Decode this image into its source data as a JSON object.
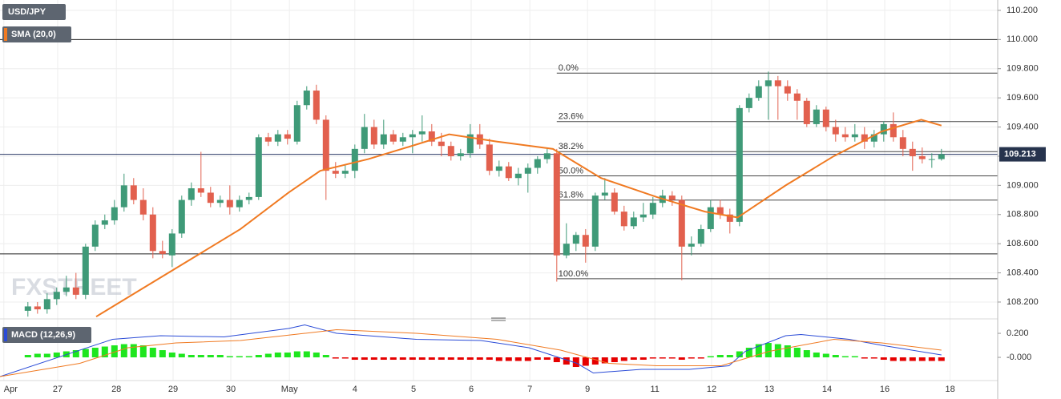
{
  "chart_data": [
    {
      "type": "candlestick",
      "title": "USD/JPY",
      "watermark": "FXSTREET",
      "ylim": [
        108.101,
        110.271
      ],
      "yticks": [
        {
          "value": 110.2,
          "label": "110.200"
        },
        {
          "value": 110.0,
          "label": "110.000"
        },
        {
          "value": 109.8,
          "label": "109.800"
        },
        {
          "value": 109.6,
          "label": "109.600"
        },
        {
          "value": 109.4,
          "label": "109.400"
        },
        {
          "value": 109.2,
          "label": "109.200"
        },
        {
          "value": 109.0,
          "label": "109.000"
        },
        {
          "value": 108.8,
          "label": "108.800"
        },
        {
          "value": 108.6,
          "label": "108.600"
        },
        {
          "value": 108.4,
          "label": "108.400"
        },
        {
          "value": 108.2,
          "label": "108.200"
        }
      ],
      "grid": true,
      "up_color": "#3f9a78",
      "down_color": "#e2604e",
      "ohlc": [
        [
          108.14,
          108.2,
          108.1,
          108.17
        ],
        [
          108.17,
          108.2,
          108.12,
          108.15
        ],
        [
          108.15,
          108.26,
          108.12,
          108.22
        ],
        [
          108.22,
          108.3,
          108.18,
          108.27
        ],
        [
          108.27,
          108.38,
          108.24,
          108.3
        ],
        [
          108.3,
          108.4,
          108.22,
          108.25
        ],
        [
          108.25,
          108.6,
          108.22,
          108.58
        ],
        [
          108.58,
          108.76,
          108.55,
          108.73
        ],
        [
          108.73,
          108.8,
          108.7,
          108.76
        ],
        [
          108.76,
          108.9,
          108.73,
          108.85
        ],
        [
          108.85,
          109.08,
          108.82,
          109.0
        ],
        [
          109.0,
          109.05,
          108.87,
          108.9
        ],
        [
          108.9,
          108.98,
          108.76,
          108.8
        ],
        [
          108.8,
          108.85,
          108.5,
          108.55
        ],
        [
          108.55,
          108.62,
          108.5,
          108.53
        ],
        [
          108.52,
          108.7,
          108.44,
          108.67
        ],
        [
          108.67,
          108.93,
          108.64,
          108.9
        ],
        [
          108.9,
          109.02,
          108.86,
          108.98
        ],
        [
          108.98,
          109.23,
          108.92,
          108.95
        ],
        [
          108.95,
          108.99,
          108.85,
          108.88
        ],
        [
          108.88,
          108.93,
          108.85,
          108.9
        ],
        [
          108.9,
          109.0,
          108.8,
          108.85
        ],
        [
          108.85,
          108.93,
          108.82,
          108.9
        ],
        [
          108.9,
          108.95,
          108.87,
          108.92
        ],
        [
          108.92,
          109.35,
          108.9,
          109.33
        ],
        [
          109.33,
          109.36,
          109.27,
          109.3
        ],
        [
          109.3,
          109.38,
          109.27,
          109.35
        ],
        [
          109.35,
          109.38,
          109.28,
          109.32
        ],
        [
          109.3,
          109.58,
          109.28,
          109.55
        ],
        [
          109.55,
          109.68,
          109.52,
          109.65
        ],
        [
          109.65,
          109.69,
          109.42,
          109.45
        ],
        [
          109.45,
          109.48,
          108.9,
          109.1
        ],
        [
          109.1,
          109.16,
          109.05,
          109.08
        ],
        [
          109.08,
          109.14,
          109.05,
          109.1
        ],
        [
          109.1,
          109.28,
          109.05,
          109.25
        ],
        [
          109.25,
          109.49,
          109.22,
          109.4
        ],
        [
          109.4,
          109.45,
          109.25,
          109.28
        ],
        [
          109.28,
          109.45,
          109.25,
          109.35
        ],
        [
          109.35,
          109.38,
          109.28,
          109.3
        ],
        [
          109.3,
          109.36,
          109.27,
          109.33
        ],
        [
          109.33,
          109.38,
          109.22,
          109.35
        ],
        [
          109.35,
          109.48,
          109.3,
          109.37
        ],
        [
          109.37,
          109.42,
          109.27,
          109.3
        ],
        [
          109.3,
          109.36,
          109.2,
          109.27
        ],
        [
          109.27,
          109.3,
          109.17,
          109.2
        ],
        [
          109.2,
          109.25,
          109.17,
          109.22
        ],
        [
          109.22,
          109.42,
          109.19,
          109.35
        ],
        [
          109.35,
          109.42,
          109.25,
          109.28
        ],
        [
          109.28,
          109.32,
          109.07,
          109.1
        ],
        [
          109.1,
          109.17,
          109.06,
          109.13
        ],
        [
          109.13,
          109.16,
          109.03,
          109.05
        ],
        [
          109.05,
          109.12,
          109.0,
          109.08
        ],
        [
          109.08,
          109.15,
          108.95,
          109.12
        ],
        [
          109.12,
          109.2,
          109.08,
          109.18
        ],
        [
          109.18,
          109.25,
          109.15,
          109.22
        ],
        [
          109.22,
          109.25,
          108.34,
          108.52
        ],
        [
          108.52,
          108.74,
          108.5,
          108.6
        ],
        [
          108.6,
          108.68,
          108.55,
          108.66
        ],
        [
          108.66,
          108.7,
          108.47,
          108.58
        ],
        [
          108.58,
          108.95,
          108.55,
          108.93
        ],
        [
          108.93,
          109.05,
          108.9,
          108.95
        ],
        [
          108.95,
          108.98,
          108.8,
          108.82
        ],
        [
          108.82,
          108.86,
          108.69,
          108.72
        ],
        [
          108.72,
          108.82,
          108.7,
          108.78
        ],
        [
          108.78,
          108.88,
          108.75,
          108.8
        ],
        [
          108.8,
          108.92,
          108.77,
          108.88
        ],
        [
          108.88,
          108.97,
          108.85,
          108.93
        ],
        [
          108.93,
          108.96,
          108.86,
          108.9
        ],
        [
          108.9,
          108.93,
          108.35,
          108.58
        ],
        [
          108.58,
          108.65,
          108.52,
          108.6
        ],
        [
          108.6,
          108.73,
          108.58,
          108.7
        ],
        [
          108.7,
          108.9,
          108.68,
          108.85
        ],
        [
          108.85,
          108.9,
          108.77,
          108.8
        ],
        [
          108.8,
          108.84,
          108.67,
          108.75
        ],
        [
          108.75,
          109.55,
          108.72,
          109.53
        ],
        [
          109.53,
          109.63,
          109.5,
          109.6
        ],
        [
          109.6,
          109.72,
          109.58,
          109.68
        ],
        [
          109.68,
          109.78,
          109.45,
          109.72
        ],
        [
          109.72,
          109.75,
          109.45,
          109.68
        ],
        [
          109.68,
          109.72,
          109.58,
          109.63
        ],
        [
          109.63,
          109.66,
          109.45,
          109.58
        ],
        [
          109.58,
          109.6,
          109.4,
          109.42
        ],
        [
          109.42,
          109.55,
          109.4,
          109.52
        ],
        [
          109.52,
          109.54,
          109.37,
          109.4
        ],
        [
          109.4,
          109.45,
          109.3,
          109.35
        ],
        [
          109.35,
          109.4,
          109.3,
          109.33
        ],
        [
          109.33,
          109.42,
          109.3,
          109.35
        ],
        [
          109.35,
          109.4,
          109.25,
          109.3
        ],
        [
          109.3,
          109.38,
          109.26,
          109.35
        ],
        [
          109.35,
          109.44,
          109.3,
          109.42
        ],
        [
          109.42,
          109.5,
          109.3,
          109.33
        ],
        [
          109.33,
          109.38,
          109.2,
          109.25
        ],
        [
          109.25,
          109.3,
          109.1,
          109.2
        ],
        [
          109.2,
          109.26,
          109.15,
          109.18
        ],
        [
          109.18,
          109.22,
          109.12,
          109.18
        ],
        [
          109.18,
          109.25,
          109.17,
          109.213
        ]
      ],
      "sma": {
        "name": "SMA (20,0)",
        "color": "#f07a22",
        "x": [
          7.1,
          12.1,
          17.1,
          22.1,
          27.1,
          30.4,
          35.4,
          40.4,
          43.8,
          48.8,
          54.6,
          59.6,
          65.4,
          70.4,
          73.8,
          78.8,
          83.8,
          88.8,
          92.9,
          95
        ],
        "values": [
          108.1,
          108.3,
          108.5,
          108.7,
          108.95,
          109.1,
          109.18,
          109.28,
          109.35,
          109.3,
          109.25,
          109.05,
          108.92,
          108.82,
          108.78,
          109.0,
          109.2,
          109.37,
          109.45,
          109.41
        ]
      },
      "hlines": [
        110.0,
        108.53
      ],
      "last_price": 109.213,
      "fibonacci": {
        "high": 109.77,
        "low": 108.36,
        "start": 55,
        "levels": [
          0,
          23.6,
          38.2,
          50,
          61.8,
          100
        ],
        "level_labels": [
          "0.0%",
          "23.6%",
          "38.2%",
          "50.0%",
          "61.8%",
          "100.0%"
        ]
      }
    },
    {
      "type": "macd",
      "title": "MACD (12,26,9)",
      "xlim": [
        -2.9,
        100.85
      ],
      "xticks": [
        {
          "value": -2.5,
          "label": "Apr"
        },
        {
          "value": 3.1,
          "label": "27"
        },
        {
          "value": 9.2,
          "label": "28"
        },
        {
          "value": 15.1,
          "label": "29"
        },
        {
          "value": 21.1,
          "label": "30"
        },
        {
          "value": 27.2,
          "label": "May"
        },
        {
          "value": 34.0,
          "label": "4"
        },
        {
          "value": 40.1,
          "label": "5"
        },
        {
          "value": 46.1,
          "label": "6"
        },
        {
          "value": 52.2,
          "label": "7"
        },
        {
          "value": 58.2,
          "label": "9"
        },
        {
          "value": 65.2,
          "label": "11"
        },
        {
          "value": 71.1,
          "label": "12"
        },
        {
          "value": 77.1,
          "label": "13"
        },
        {
          "value": 83.1,
          "label": "14"
        },
        {
          "value": 89.1,
          "label": "16"
        },
        {
          "value": 95.9,
          "label": "18"
        }
      ],
      "ylim": [
        -0.16,
        0.287
      ],
      "yticks": [
        {
          "value": 0.2,
          "label": "0.200"
        },
        {
          "value": 0,
          "label": "-0.000"
        }
      ],
      "histogram": {
        "up_color": "#1ee61e",
        "down_color": "#e60000",
        "values": [
          0.02,
          0.03,
          0.03,
          0.04,
          0.05,
          0.06,
          0.07,
          0.08,
          0.09,
          0.1,
          0.11,
          0.11,
          0.1,
          0.08,
          0.06,
          0.04,
          0.03,
          0.02,
          0.02,
          0.02,
          0.02,
          0.01,
          0.01,
          0.01,
          0.02,
          0.03,
          0.04,
          0.04,
          0.05,
          0.05,
          0.04,
          0.02,
          -0.01,
          -0.01,
          -0.02,
          -0.02,
          -0.02,
          -0.02,
          -0.02,
          -0.02,
          -0.02,
          -0.02,
          -0.02,
          -0.02,
          -0.02,
          -0.02,
          -0.02,
          -0.02,
          -0.02,
          -0.03,
          -0.03,
          -0.03,
          -0.03,
          -0.02,
          -0.02,
          -0.04,
          -0.06,
          -0.08,
          -0.07,
          -0.06,
          -0.05,
          -0.04,
          -0.03,
          -0.02,
          -0.02,
          -0.01,
          -0.01,
          -0.01,
          -0.02,
          -0.01,
          -0.01,
          0.01,
          0.02,
          0.02,
          0.05,
          0.08,
          0.11,
          0.12,
          0.11,
          0.1,
          0.08,
          0.06,
          0.04,
          0.03,
          0.02,
          0.01,
          0.01,
          -0.01,
          -0.01,
          -0.02,
          -0.03,
          -0.03,
          -0.03,
          -0.03,
          -0.03,
          -0.03
        ]
      },
      "lines": [
        {
          "color": "#2a4bd7",
          "x": [
            -2.9,
            8.8,
            13.8,
            20.4,
            27.1,
            28.8,
            32.1,
            40.4,
            47.1,
            52.1,
            57.1,
            58.8,
            63.8,
            68.8,
            72.9,
            74.6,
            78.8,
            80.4,
            85.4,
            88.8,
            95
          ],
          "values": [
            -0.16,
            0.15,
            0.18,
            0.17,
            0.24,
            0.27,
            0.2,
            0.15,
            0.14,
            0.08,
            -0.05,
            -0.13,
            -0.1,
            -0.1,
            -0.07,
            0.05,
            0.18,
            0.19,
            0.15,
            0.1,
            0.02
          ]
        },
        {
          "color": "#f07a22",
          "x": [
            -2.9,
            5.4,
            10.4,
            15.4,
            22.1,
            28.8,
            32.1,
            40.4,
            48.8,
            55.4,
            60.4,
            65.4,
            72.1,
            77.1,
            83.8,
            88.8,
            95
          ],
          "values": [
            -0.16,
            -0.05,
            0.08,
            0.12,
            0.14,
            0.2,
            0.23,
            0.2,
            0.15,
            0.06,
            -0.05,
            -0.07,
            -0.07,
            0.05,
            0.15,
            0.12,
            0.06
          ]
        }
      ]
    }
  ]
}
